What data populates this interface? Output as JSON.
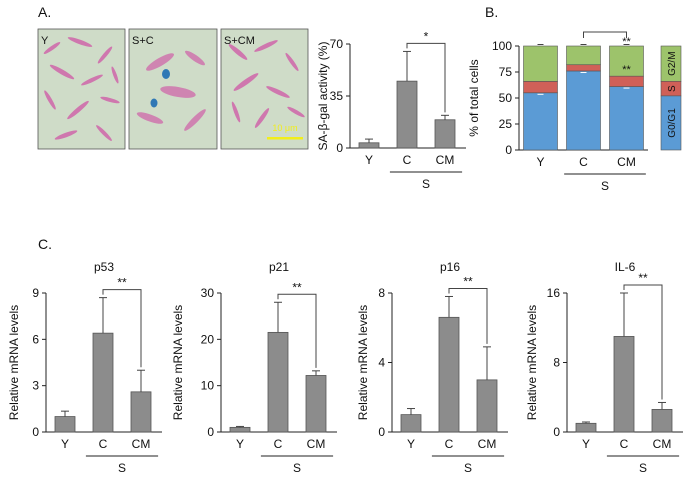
{
  "panels": {
    "a": "A.",
    "b": "B.",
    "c": "C."
  },
  "micrographs": {
    "labels": [
      "Y",
      "S+C",
      "S+CM"
    ],
    "scale_bar": "10 μm",
    "colors": {
      "background": "#cfdcc8",
      "cells": "#cf5fa8",
      "stain": "#2f78b5",
      "scale": "#f2ee1a"
    }
  },
  "chart_data": [
    {
      "id": "sa-gal",
      "type": "bar",
      "title": "",
      "ylabel": "SA-β-gal activity (%)",
      "categories": [
        "Y",
        "C",
        "CM"
      ],
      "values": [
        3.5,
        45,
        19
      ],
      "errors": [
        2.5,
        20,
        3
      ],
      "ylim": [
        0,
        70
      ],
      "yticks": [
        "0",
        "35",
        "70"
      ],
      "group_label": "S",
      "significance": [
        {
          "from": 1,
          "to": 2,
          "label": "*"
        }
      ],
      "bar_color": "#8c8c8c"
    },
    {
      "id": "cell-cycle",
      "type": "bar",
      "stacked": true,
      "ylabel": "% of total cells",
      "categories": [
        "Y",
        "C",
        "CM"
      ],
      "series": [
        {
          "name": "G0/G1",
          "values": [
            55,
            76,
            61
          ],
          "color": "#5b9bd5"
        },
        {
          "name": "S",
          "values": [
            11,
            6,
            10
          ],
          "color": "#d06058"
        },
        {
          "name": "G2/M",
          "values": [
            34,
            18,
            29
          ],
          "color": "#9dc36b"
        }
      ],
      "ylim": [
        0,
        100
      ],
      "yticks": [
        "0",
        "25",
        "50",
        "75",
        "100"
      ],
      "group_label": "S",
      "significance": [
        {
          "from": 1,
          "to": 2,
          "label": "**"
        }
      ],
      "annotations": [
        "**",
        "**"
      ],
      "legend": {
        "g2m": "G2/M",
        "s": "S",
        "g0g1": "G0/G1"
      }
    },
    {
      "id": "p53",
      "type": "bar",
      "title": "p53",
      "ylabel": "Relative mRNA levels",
      "categories": [
        "Y",
        "C",
        "CM"
      ],
      "values": [
        1.0,
        6.4,
        2.6
      ],
      "errors": [
        0.35,
        2.3,
        1.4
      ],
      "ylim": [
        0,
        9
      ],
      "yticks": [
        "0",
        "3",
        "6",
        "9"
      ],
      "group_label": "S",
      "significance": [
        {
          "from": 1,
          "to": 2,
          "label": "**"
        }
      ],
      "bar_color": "#8c8c8c"
    },
    {
      "id": "p21",
      "type": "bar",
      "title": "p21",
      "ylabel": "Relative mRNA levels",
      "categories": [
        "Y",
        "C",
        "CM"
      ],
      "values": [
        1.0,
        21.5,
        12.2
      ],
      "errors": [
        0.2,
        6.5,
        1.0
      ],
      "ylim": [
        0,
        30
      ],
      "yticks": [
        "0",
        "10",
        "20",
        "30"
      ],
      "group_label": "S",
      "significance": [
        {
          "from": 1,
          "to": 2,
          "label": "**"
        }
      ],
      "bar_color": "#8c8c8c"
    },
    {
      "id": "p16",
      "type": "bar",
      "title": "p16",
      "ylabel": "Relative mRNA levels",
      "categories": [
        "Y",
        "C",
        "CM"
      ],
      "values": [
        1.0,
        6.6,
        3.0
      ],
      "errors": [
        0.35,
        1.2,
        1.9
      ],
      "ylim": [
        0,
        8
      ],
      "yticks": [
        "0",
        "4",
        "8"
      ],
      "group_label": "S",
      "significance": [
        {
          "from": 1,
          "to": 2,
          "label": "**"
        }
      ],
      "bar_color": "#8c8c8c"
    },
    {
      "id": "il6",
      "type": "bar",
      "title": "IL-6",
      "ylabel": "Relative mRNA levels",
      "categories": [
        "Y",
        "C",
        "CM"
      ],
      "values": [
        1.0,
        11.0,
        2.6
      ],
      "errors": [
        0.15,
        5.0,
        0.8
      ],
      "ylim": [
        0,
        16
      ],
      "yticks": [
        "0",
        "8",
        "16"
      ],
      "group_label": "S",
      "significance": [
        {
          "from": 1,
          "to": 2,
          "label": "**"
        }
      ],
      "bar_color": "#8c8c8c"
    }
  ]
}
